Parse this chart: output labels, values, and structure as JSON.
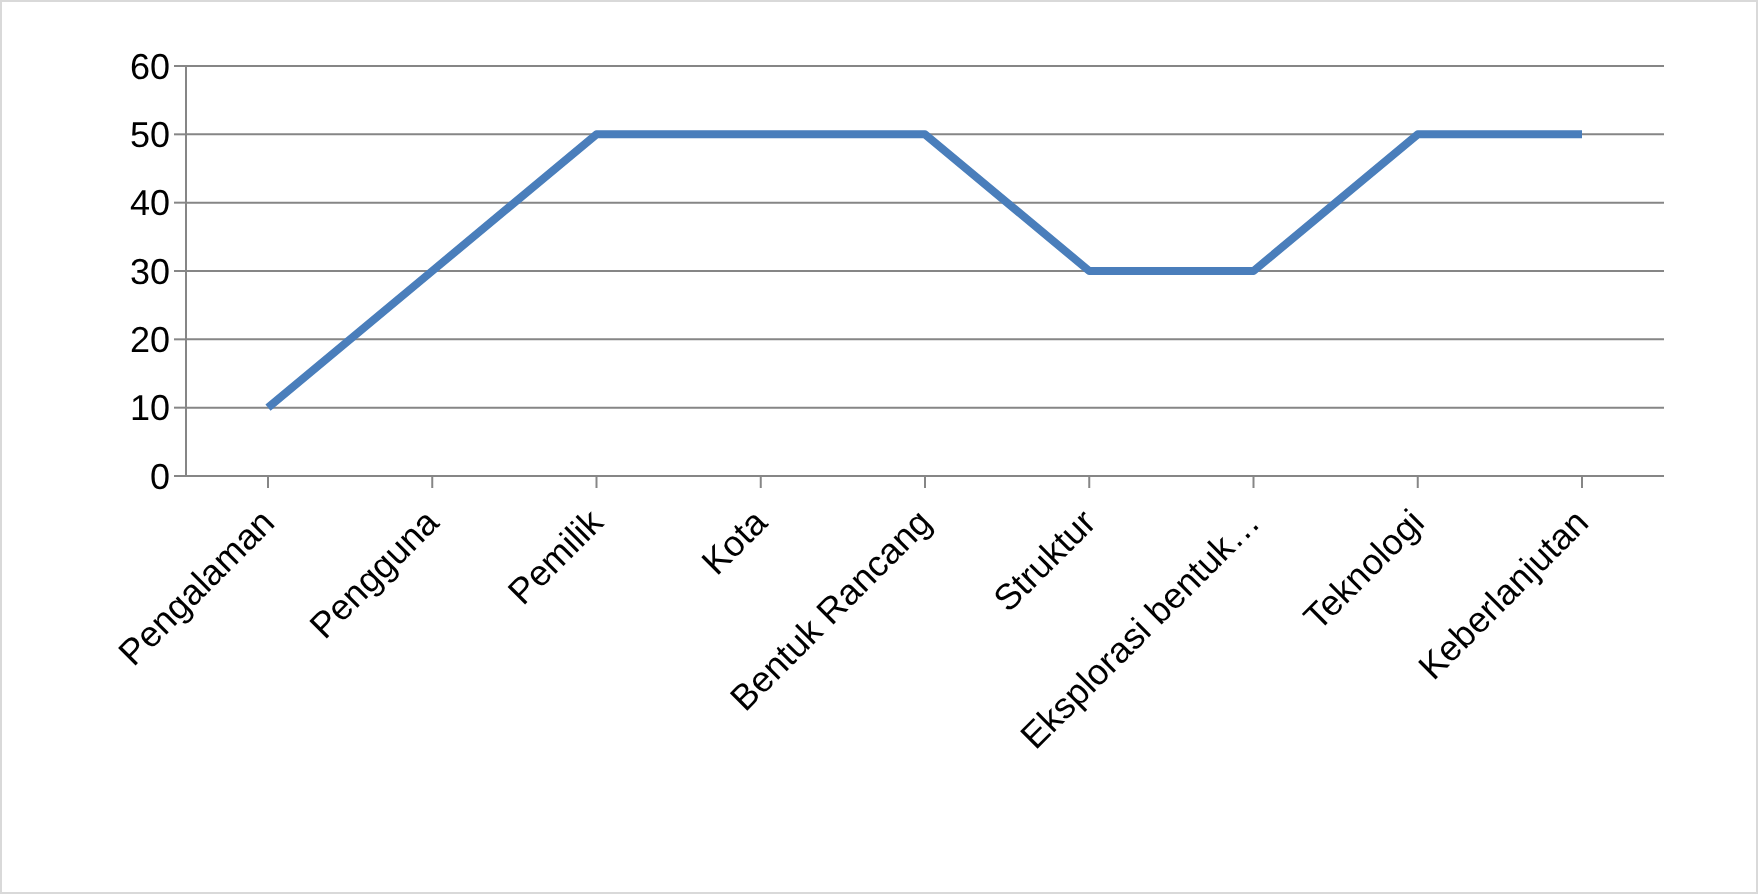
{
  "chart_data": {
    "type": "line",
    "categories": [
      "Pengalaman",
      "Pengguna",
      "Pemilik",
      "Kota",
      "Bentuk Rancang",
      "Struktur",
      "Eksplorasi bentuk…",
      "Teknologi",
      "Keberlanjutan"
    ],
    "series": [
      {
        "color": "#4a7ebb",
        "values": [
          10,
          30,
          50,
          50,
          50,
          30,
          30,
          50,
          50
        ]
      }
    ],
    "ylim": [
      0,
      60
    ],
    "yticks": [
      0,
      10,
      20,
      30,
      40,
      50,
      60
    ],
    "grid": "y",
    "marker": "none",
    "line_style": "solid"
  }
}
